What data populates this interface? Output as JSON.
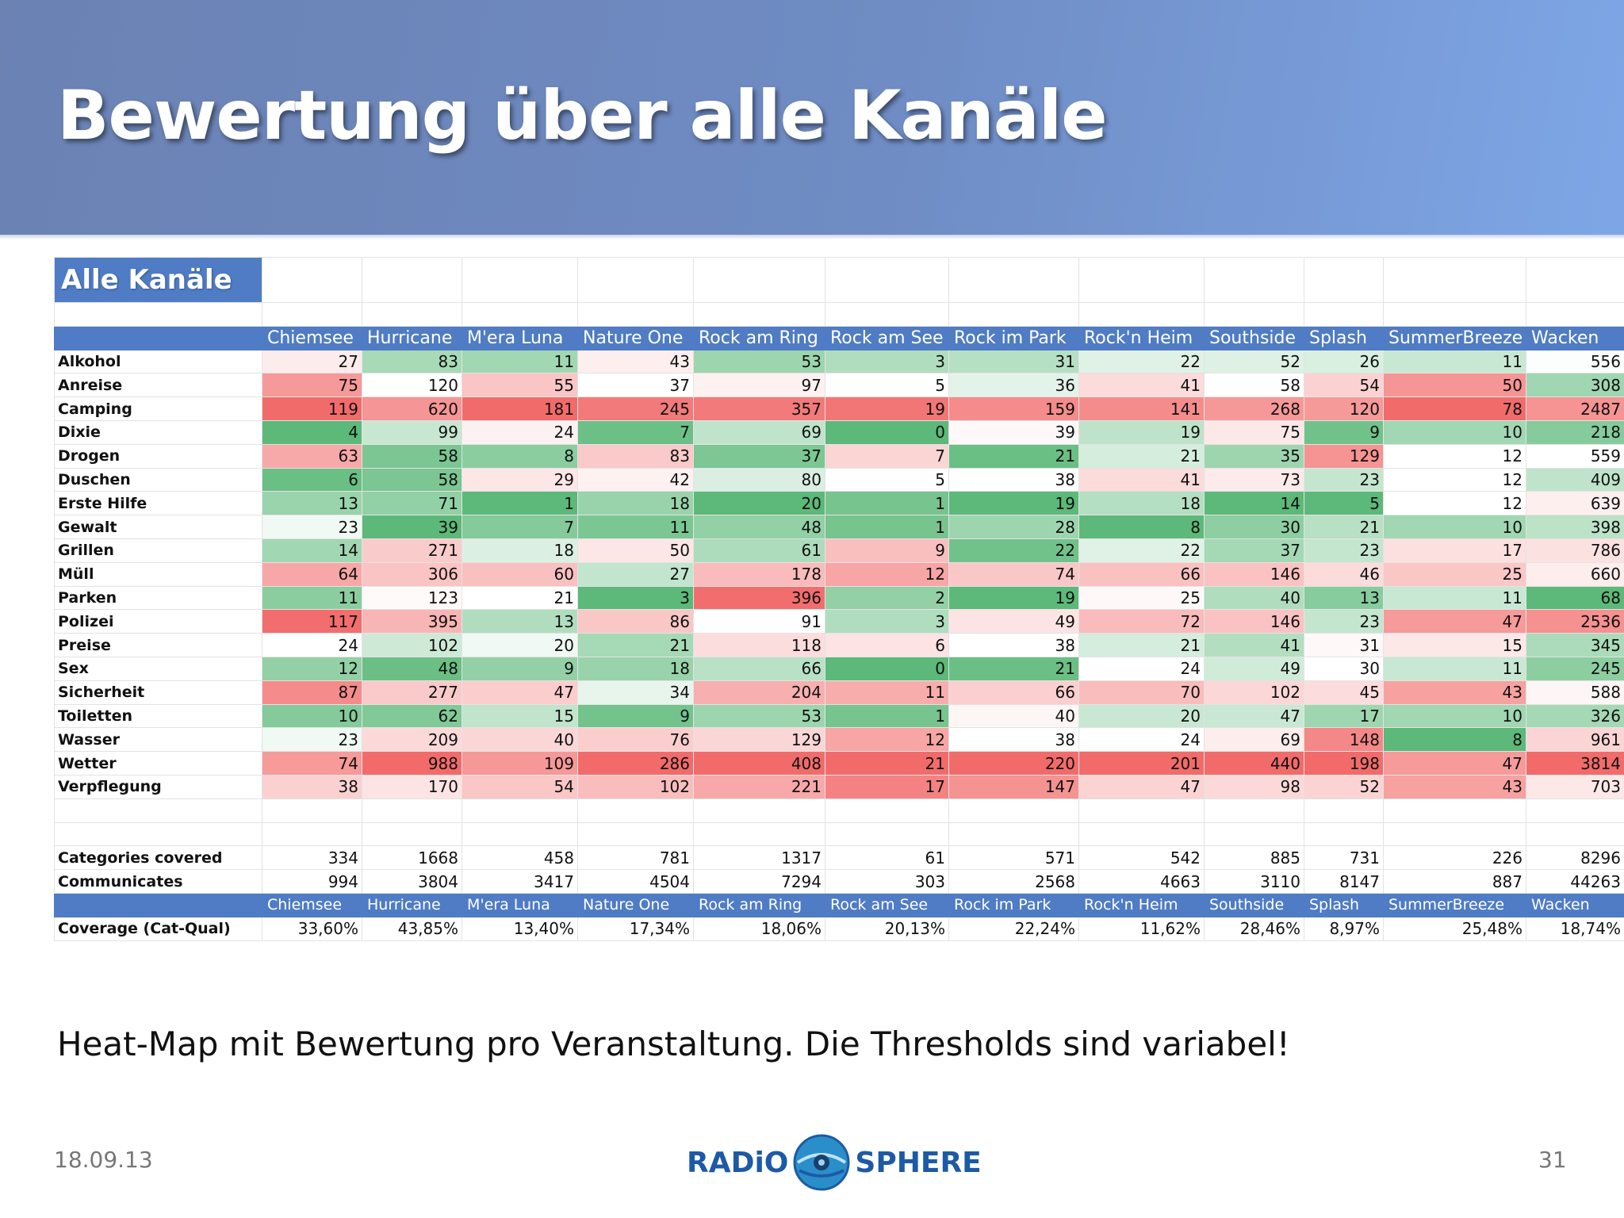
{
  "slide": {
    "title": "Bewertung über alle Kanäle",
    "caption": "Heat-Map mit Bewertung pro Veranstaltung. Die Thresholds sind variabel!",
    "date": "18.09.13",
    "page_number": "31",
    "logo": {
      "left_text": "RADiO",
      "right_text": "SPHERE",
      "icon": "radio-globe-icon"
    }
  },
  "table": {
    "title": "Alle Kanäle",
    "columns": [
      "Chiemsee",
      "Hurricane",
      "M'era Luna",
      "Nature One",
      "Rock am Ring",
      "Rock am See",
      "Rock im Park",
      "Rock'n Heim",
      "Southside",
      "Splash",
      "SummerBreeze",
      "Wacken"
    ],
    "rows": [
      {
        "label": "Alkohol",
        "values": [
          27,
          83,
          11,
          43,
          53,
          3,
          31,
          22,
          52,
          26,
          11,
          556
        ]
      },
      {
        "label": "Anreise",
        "values": [
          75,
          120,
          55,
          37,
          97,
          5,
          36,
          41,
          58,
          54,
          50,
          308
        ]
      },
      {
        "label": "Camping",
        "values": [
          119,
          620,
          181,
          245,
          357,
          19,
          159,
          141,
          268,
          120,
          78,
          2487
        ]
      },
      {
        "label": "Dixie",
        "values": [
          4,
          99,
          24,
          7,
          69,
          0,
          39,
          19,
          75,
          9,
          10,
          218
        ]
      },
      {
        "label": "Drogen",
        "values": [
          63,
          58,
          8,
          83,
          37,
          7,
          21,
          21,
          35,
          129,
          12,
          559
        ]
      },
      {
        "label": "Duschen",
        "values": [
          6,
          58,
          29,
          42,
          80,
          5,
          38,
          41,
          73,
          23,
          12,
          409
        ]
      },
      {
        "label": "Erste Hilfe",
        "values": [
          13,
          71,
          1,
          18,
          20,
          1,
          19,
          18,
          14,
          5,
          12,
          639
        ]
      },
      {
        "label": "Gewalt",
        "values": [
          23,
          39,
          7,
          11,
          48,
          1,
          28,
          8,
          30,
          21,
          10,
          398
        ]
      },
      {
        "label": "Grillen",
        "values": [
          14,
          271,
          18,
          50,
          61,
          9,
          22,
          22,
          37,
          23,
          17,
          786
        ]
      },
      {
        "label": "Müll",
        "values": [
          64,
          306,
          60,
          27,
          178,
          12,
          74,
          66,
          146,
          46,
          25,
          660
        ]
      },
      {
        "label": "Parken",
        "values": [
          11,
          123,
          21,
          3,
          396,
          2,
          19,
          25,
          40,
          13,
          11,
          68
        ]
      },
      {
        "label": "Polizei",
        "values": [
          117,
          395,
          13,
          86,
          91,
          3,
          49,
          72,
          146,
          23,
          47,
          2536
        ]
      },
      {
        "label": "Preise",
        "values": [
          24,
          102,
          20,
          21,
          118,
          6,
          38,
          21,
          41,
          31,
          15,
          345
        ]
      },
      {
        "label": "Sex",
        "values": [
          12,
          48,
          9,
          18,
          66,
          0,
          21,
          24,
          49,
          30,
          11,
          245
        ]
      },
      {
        "label": "Sicherheit",
        "values": [
          87,
          277,
          47,
          34,
          204,
          11,
          66,
          70,
          102,
          45,
          43,
          588
        ]
      },
      {
        "label": "Toiletten",
        "values": [
          10,
          62,
          15,
          9,
          53,
          1,
          40,
          20,
          47,
          17,
          10,
          326
        ]
      },
      {
        "label": "Wasser",
        "values": [
          23,
          209,
          40,
          76,
          129,
          12,
          38,
          24,
          69,
          148,
          8,
          961
        ]
      },
      {
        "label": "Wetter",
        "values": [
          74,
          988,
          109,
          286,
          408,
          21,
          220,
          201,
          440,
          198,
          47,
          3814
        ]
      },
      {
        "label": "Verpflegung",
        "values": [
          38,
          170,
          54,
          102,
          221,
          17,
          147,
          47,
          98,
          52,
          43,
          703
        ]
      }
    ],
    "summary": [
      {
        "label": "Categories covered",
        "values": [
          "334",
          "1668",
          "458",
          "781",
          "1317",
          "61",
          "571",
          "542",
          "885",
          "731",
          "226",
          "8296"
        ]
      },
      {
        "label": "Communicates",
        "values": [
          "994",
          "3804",
          "3417",
          "4504",
          "7294",
          "303",
          "2568",
          "4663",
          "3110",
          "8147",
          "887",
          "44263"
        ]
      }
    ],
    "coverage": {
      "label": "Coverage (Cat-Qual)",
      "values": [
        "33,60%",
        "43,85%",
        "13,40%",
        "17,34%",
        "18,06%",
        "20,13%",
        "22,24%",
        "11,62%",
        "28,46%",
        "8,97%",
        "25,48%",
        "18,74%"
      ]
    },
    "colors": {
      "header": "#4f7cc4",
      "high": "#f26b6b",
      "mid": "#ffffff",
      "low": "#5cb979"
    }
  }
}
